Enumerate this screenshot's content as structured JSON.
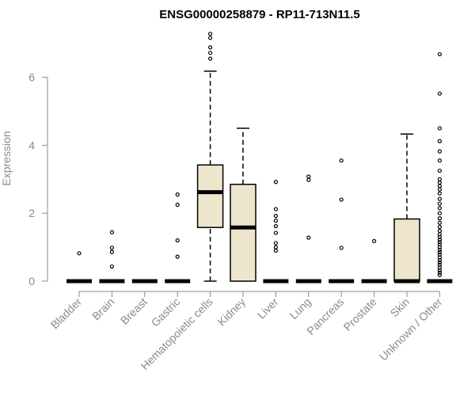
{
  "chart_data": {
    "type": "boxplot",
    "title": "ENSG00000258879 - RP11-713N11.5",
    "xlabel": "",
    "ylabel": "Expression",
    "ylim": [
      0,
      7.3
    ],
    "yticks": [
      0,
      2,
      4,
      6
    ],
    "grid": false,
    "legend": "none",
    "colors": {
      "box_fill": "#ede6cd",
      "stroke": "#000000",
      "axis_text": "#8a8a8a"
    },
    "categories": [
      "Bladder",
      "Brain",
      "Breast",
      "Gastric",
      "Hematopoietic cells",
      "Kidney",
      "Liver",
      "Lung",
      "Pancreas",
      "Prostate",
      "Skin",
      "Unknown / Other"
    ],
    "boxes": [
      {
        "category": "Bladder",
        "min": 0,
        "q1": 0,
        "median": 0,
        "q3": 0,
        "max": 0,
        "outliers": [
          0.82
        ]
      },
      {
        "category": "Brain",
        "min": 0,
        "q1": 0,
        "median": 0,
        "q3": 0,
        "max": 0,
        "outliers": [
          1.44,
          0.98,
          0.86,
          0.43
        ]
      },
      {
        "category": "Breast",
        "min": 0,
        "q1": 0,
        "median": 0,
        "q3": 0,
        "max": 0,
        "outliers": []
      },
      {
        "category": "Gastric",
        "min": 0,
        "q1": 0,
        "median": 0,
        "q3": 0,
        "max": 0,
        "outliers": [
          2.55,
          2.25,
          1.2,
          0.72
        ]
      },
      {
        "category": "Hematopoietic cells",
        "min": 0,
        "q1": 1.58,
        "median": 2.62,
        "q3": 3.42,
        "max": 6.18,
        "outliers": [
          7.28,
          7.16,
          6.88,
          6.72,
          6.55
        ]
      },
      {
        "category": "Kidney",
        "min": 0,
        "q1": 0,
        "median": 1.58,
        "q3": 2.85,
        "max": 4.5,
        "outliers": []
      },
      {
        "category": "Liver",
        "min": 0,
        "q1": 0,
        "median": 0,
        "q3": 0,
        "max": 0,
        "outliers": [
          2.92,
          2.12,
          1.92,
          1.78,
          1.62,
          1.42,
          1.12,
          1.0,
          0.9
        ]
      },
      {
        "category": "Lung",
        "min": 0,
        "q1": 0,
        "median": 0,
        "q3": 0,
        "max": 0,
        "outliers": [
          3.08,
          2.98,
          1.28
        ]
      },
      {
        "category": "Pancreas",
        "min": 0,
        "q1": 0,
        "median": 0,
        "q3": 0,
        "max": 0,
        "outliers": [
          3.55,
          2.4,
          0.98
        ]
      },
      {
        "category": "Prostate",
        "min": 0,
        "q1": 0,
        "median": 0,
        "q3": 0,
        "max": 0,
        "outliers": [
          1.18
        ]
      },
      {
        "category": "Skin",
        "min": 0,
        "q1": 0,
        "median": 0,
        "q3": 1.83,
        "max": 4.33,
        "outliers": []
      },
      {
        "category": "Unknown / Other",
        "min": 0,
        "q1": 0,
        "median": 0,
        "q3": 0,
        "max": 0,
        "outliers": [
          6.68,
          5.52,
          4.5,
          4.12,
          3.82,
          3.55,
          3.25,
          3.0,
          2.9,
          2.8,
          2.7,
          2.58,
          2.42,
          2.28,
          2.15,
          2.0,
          1.85,
          1.72,
          1.6,
          1.48,
          1.38,
          1.3,
          1.22,
          1.15,
          1.08,
          1.0,
          0.92,
          0.85,
          0.78,
          0.7,
          0.62,
          0.55,
          0.48,
          0.4,
          0.32,
          0.25,
          0.18
        ]
      }
    ]
  }
}
